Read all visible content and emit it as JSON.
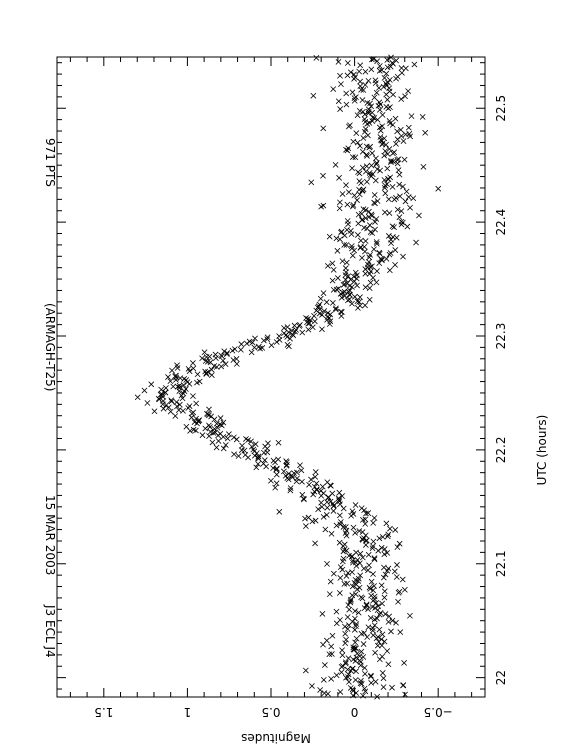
{
  "chart_data": {
    "type": "scatter",
    "title_parts": [
      "J3 ECL J4",
      "15 MAR 2003",
      "(ARMAGH-T25)",
      "971 PTS"
    ],
    "xlabel": "UTC (hours)",
    "ylabel": "Magnitudes",
    "xlim": [
      21.983,
      22.545
    ],
    "ylim": [
      1.78,
      -0.78
    ],
    "x_ticks": [
      22,
      22.1,
      22.2,
      22.3,
      22.4,
      22.5
    ],
    "x_tick_labels": [
      "22",
      "22.1",
      "22.2",
      "22.3",
      "22.4",
      "22.5"
    ],
    "y_ticks": [
      -0.5,
      0,
      0.5,
      1,
      1.5
    ],
    "y_tick_labels": [
      "−0.5",
      "0",
      "0.5",
      "1",
      "1.5"
    ],
    "marker": "x",
    "marker_color": "#000000",
    "orientation": "rotated-90",
    "grid": false,
    "light_curve": {
      "t": [
        21.983,
        22.0,
        22.02,
        22.04,
        22.06,
        22.08,
        22.1,
        22.12,
        22.14,
        22.16,
        22.18,
        22.2,
        22.22,
        22.24,
        22.25,
        22.26,
        22.27,
        22.28,
        22.29,
        22.3,
        22.31,
        22.32,
        22.33,
        22.34,
        22.36,
        22.38,
        22.4,
        22.42,
        22.44,
        22.46,
        22.48,
        22.5,
        22.52,
        22.545
      ],
      "mag": [
        -0.02,
        0.0,
        -0.02,
        -0.04,
        -0.06,
        -0.06,
        -0.07,
        -0.03,
        0.05,
        0.2,
        0.4,
        0.63,
        0.88,
        1.08,
        1.12,
        1.05,
        0.95,
        0.8,
        0.62,
        0.45,
        0.28,
        0.15,
        0.08,
        0.02,
        -0.05,
        -0.08,
        -0.1,
        -0.11,
        -0.12,
        -0.12,
        -0.12,
        -0.12,
        -0.12,
        -0.12
      ],
      "scatter": [
        0.17,
        0.17,
        0.17,
        0.17,
        0.16,
        0.16,
        0.16,
        0.15,
        0.15,
        0.13,
        0.12,
        0.11,
        0.11,
        0.11,
        0.11,
        0.11,
        0.11,
        0.11,
        0.11,
        0.1,
        0.09,
        0.09,
        0.1,
        0.12,
        0.14,
        0.16,
        0.17,
        0.18,
        0.18,
        0.18,
        0.18,
        0.18,
        0.18,
        0.18
      ],
      "n_points": 971
    }
  }
}
